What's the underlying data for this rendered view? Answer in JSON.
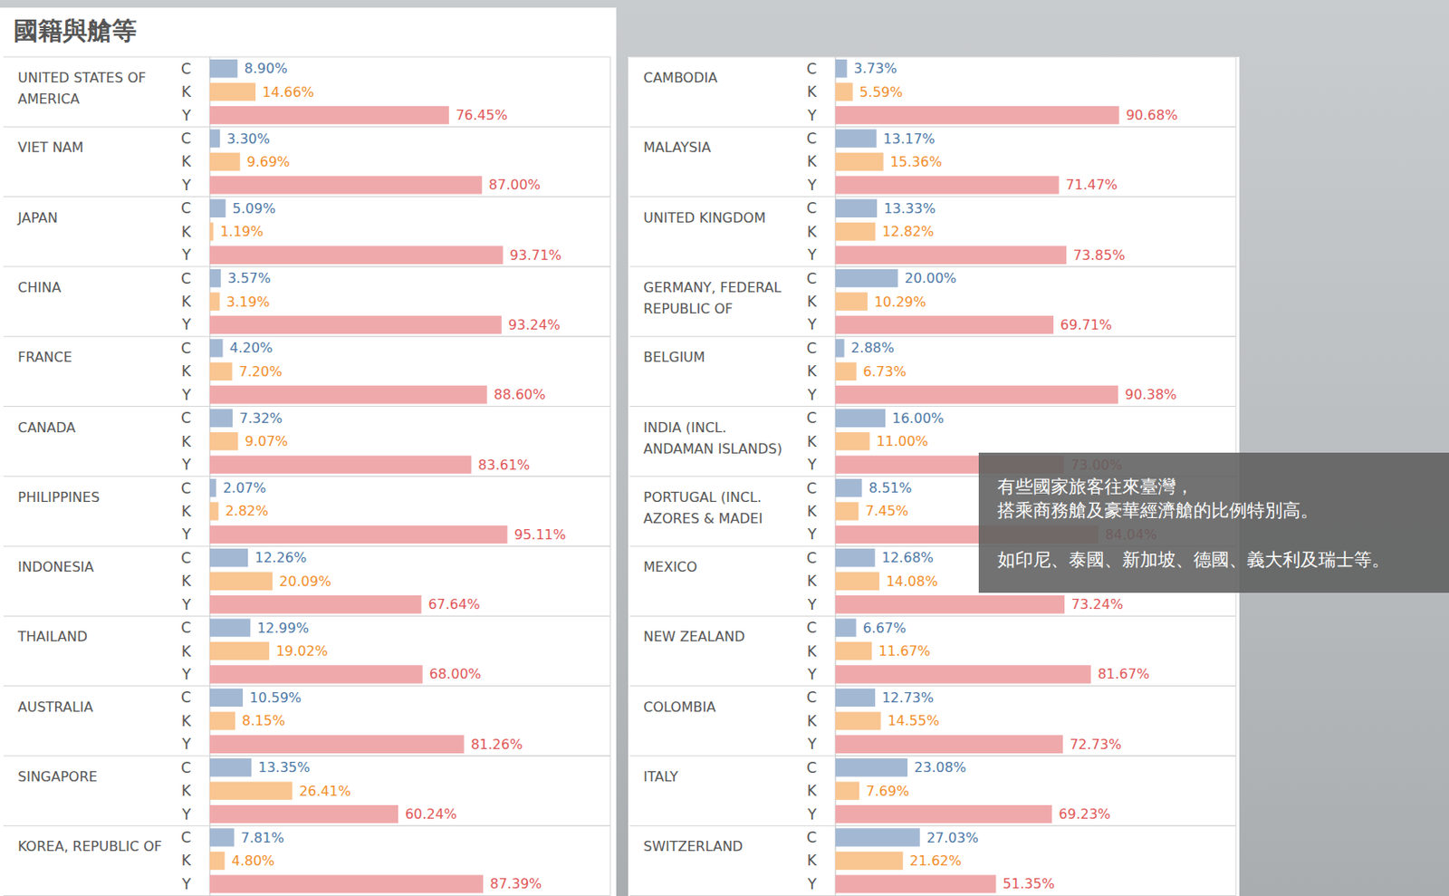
{
  "title": "國籍與艙等",
  "annotation": [
    "有些國家旅客往來臺灣，",
    "搭乘商務艙及豪華經濟艙的比例特別高。",
    "如印尼、泰國、新加坡、德國、義大利及瑞士等。"
  ],
  "chart_data": [
    {
      "type": "bar",
      "title": "UNITED STATES OF AMERICA",
      "categories": [
        "C",
        "K",
        "Y"
      ],
      "values": [
        8.9,
        14.66,
        76.45
      ],
      "value_labels": [
        "8.90%",
        "14.66%",
        "76.45%"
      ],
      "colors": [
        "#a3b8d3",
        "#f9c591",
        "#f0a9ab"
      ],
      "orientation": "horizontal",
      "data_labels": true,
      "tick_labels": "y",
      "xlim": [
        0,
        128
      ]
    },
    {
      "type": "bar",
      "title": "VIET NAM",
      "categories": [
        "C",
        "K",
        "Y"
      ],
      "values": [
        3.3,
        9.69,
        87.0
      ],
      "value_labels": [
        "3.30%",
        "9.69%",
        "87.00%"
      ],
      "colors": [
        "#a3b8d3",
        "#f9c591",
        "#f0a9ab"
      ],
      "orientation": "horizontal",
      "data_labels": true,
      "tick_labels": "y",
      "xlim": [
        0,
        128
      ]
    },
    {
      "type": "bar",
      "title": "JAPAN",
      "categories": [
        "C",
        "K",
        "Y"
      ],
      "values": [
        5.09,
        1.19,
        93.71
      ],
      "value_labels": [
        "5.09%",
        "1.19%",
        "93.71%"
      ],
      "colors": [
        "#a3b8d3",
        "#f9c591",
        "#f0a9ab"
      ],
      "orientation": "horizontal",
      "data_labels": true,
      "tick_labels": "y",
      "xlim": [
        0,
        128
      ]
    },
    {
      "type": "bar",
      "title": "CHINA",
      "categories": [
        "C",
        "K",
        "Y"
      ],
      "values": [
        3.57,
        3.19,
        93.24
      ],
      "value_labels": [
        "3.57%",
        "3.19%",
        "93.24%"
      ],
      "colors": [
        "#a3b8d3",
        "#f9c591",
        "#f0a9ab"
      ],
      "orientation": "horizontal",
      "data_labels": true,
      "tick_labels": "y",
      "xlim": [
        0,
        128
      ]
    },
    {
      "type": "bar",
      "title": "FRANCE",
      "categories": [
        "C",
        "K",
        "Y"
      ],
      "values": [
        4.2,
        7.2,
        88.6
      ],
      "value_labels": [
        "4.20%",
        "7.20%",
        "88.60%"
      ],
      "colors": [
        "#a3b8d3",
        "#f9c591",
        "#f0a9ab"
      ],
      "orientation": "horizontal",
      "data_labels": true,
      "tick_labels": "y",
      "xlim": [
        0,
        128
      ]
    },
    {
      "type": "bar",
      "title": "CANADA",
      "categories": [
        "C",
        "K",
        "Y"
      ],
      "values": [
        7.32,
        9.07,
        83.61
      ],
      "value_labels": [
        "7.32%",
        "9.07%",
        "83.61%"
      ],
      "colors": [
        "#a3b8d3",
        "#f9c591",
        "#f0a9ab"
      ],
      "orientation": "horizontal",
      "data_labels": true,
      "tick_labels": "y",
      "xlim": [
        0,
        128
      ]
    },
    {
      "type": "bar",
      "title": "PHILIPPINES",
      "categories": [
        "C",
        "K",
        "Y"
      ],
      "values": [
        2.07,
        2.82,
        95.11
      ],
      "value_labels": [
        "2.07%",
        "2.82%",
        "95.11%"
      ],
      "colors": [
        "#a3b8d3",
        "#f9c591",
        "#f0a9ab"
      ],
      "orientation": "horizontal",
      "data_labels": true,
      "tick_labels": "y",
      "xlim": [
        0,
        128
      ]
    },
    {
      "type": "bar",
      "title": "INDONESIA",
      "categories": [
        "C",
        "K",
        "Y"
      ],
      "values": [
        12.26,
        20.09,
        67.64
      ],
      "value_labels": [
        "12.26%",
        "20.09%",
        "67.64%"
      ],
      "colors": [
        "#a3b8d3",
        "#f9c591",
        "#f0a9ab"
      ],
      "orientation": "horizontal",
      "data_labels": true,
      "tick_labels": "y",
      "xlim": [
        0,
        128
      ]
    },
    {
      "type": "bar",
      "title": "THAILAND",
      "categories": [
        "C",
        "K",
        "Y"
      ],
      "values": [
        12.99,
        19.02,
        68.0
      ],
      "value_labels": [
        "12.99%",
        "19.02%",
        "68.00%"
      ],
      "colors": [
        "#a3b8d3",
        "#f9c591",
        "#f0a9ab"
      ],
      "orientation": "horizontal",
      "data_labels": true,
      "tick_labels": "y",
      "xlim": [
        0,
        128
      ]
    },
    {
      "type": "bar",
      "title": "AUSTRALIA",
      "categories": [
        "C",
        "K",
        "Y"
      ],
      "values": [
        10.59,
        8.15,
        81.26
      ],
      "value_labels": [
        "10.59%",
        "8.15%",
        "81.26%"
      ],
      "colors": [
        "#a3b8d3",
        "#f9c591",
        "#f0a9ab"
      ],
      "orientation": "horizontal",
      "data_labels": true,
      "tick_labels": "y",
      "xlim": [
        0,
        128
      ]
    },
    {
      "type": "bar",
      "title": "SINGAPORE",
      "categories": [
        "C",
        "K",
        "Y"
      ],
      "values": [
        13.35,
        26.41,
        60.24
      ],
      "value_labels": [
        "13.35%",
        "26.41%",
        "60.24%"
      ],
      "colors": [
        "#a3b8d3",
        "#f9c591",
        "#f0a9ab"
      ],
      "orientation": "horizontal",
      "data_labels": true,
      "tick_labels": "y",
      "xlim": [
        0,
        128
      ]
    },
    {
      "type": "bar",
      "title": "KOREA, REPUBLIC OF",
      "categories": [
        "C",
        "K",
        "Y"
      ],
      "values": [
        7.81,
        4.8,
        87.39
      ],
      "value_labels": [
        "7.81%",
        "4.80%",
        "87.39%"
      ],
      "colors": [
        "#a3b8d3",
        "#f9c591",
        "#f0a9ab"
      ],
      "orientation": "horizontal",
      "data_labels": true,
      "tick_labels": "y",
      "xlim": [
        0,
        128
      ]
    },
    {
      "type": "bar",
      "title": "CAMBODIA",
      "categories": [
        "C",
        "K",
        "Y"
      ],
      "values": [
        3.73,
        5.59,
        90.68
      ],
      "value_labels": [
        "3.73%",
        "5.59%",
        "90.68%"
      ],
      "colors": [
        "#a3b8d3",
        "#f9c591",
        "#f0a9ab"
      ],
      "orientation": "horizontal",
      "data_labels": true,
      "tick_labels": "y",
      "xlim": [
        0,
        128
      ]
    },
    {
      "type": "bar",
      "title": "MALAYSIA",
      "categories": [
        "C",
        "K",
        "Y"
      ],
      "values": [
        13.17,
        15.36,
        71.47
      ],
      "value_labels": [
        "13.17%",
        "15.36%",
        "71.47%"
      ],
      "colors": [
        "#a3b8d3",
        "#f9c591",
        "#f0a9ab"
      ],
      "orientation": "horizontal",
      "data_labels": true,
      "tick_labels": "y",
      "xlim": [
        0,
        128
      ]
    },
    {
      "type": "bar",
      "title": "UNITED KINGDOM",
      "categories": [
        "C",
        "K",
        "Y"
      ],
      "values": [
        13.33,
        12.82,
        73.85
      ],
      "value_labels": [
        "13.33%",
        "12.82%",
        "73.85%"
      ],
      "colors": [
        "#a3b8d3",
        "#f9c591",
        "#f0a9ab"
      ],
      "orientation": "horizontal",
      "data_labels": true,
      "tick_labels": "y",
      "xlim": [
        0,
        128
      ]
    },
    {
      "type": "bar",
      "title": "GERMANY, FEDERAL REPUBLIC OF",
      "categories": [
        "C",
        "K",
        "Y"
      ],
      "values": [
        20.0,
        10.29,
        69.71
      ],
      "value_labels": [
        "20.00%",
        "10.29%",
        "69.71%"
      ],
      "colors": [
        "#a3b8d3",
        "#f9c591",
        "#f0a9ab"
      ],
      "orientation": "horizontal",
      "data_labels": true,
      "tick_labels": "y",
      "xlim": [
        0,
        128
      ]
    },
    {
      "type": "bar",
      "title": "BELGIUM",
      "categories": [
        "C",
        "K",
        "Y"
      ],
      "values": [
        2.88,
        6.73,
        90.38
      ],
      "value_labels": [
        "2.88%",
        "6.73%",
        "90.38%"
      ],
      "colors": [
        "#a3b8d3",
        "#f9c591",
        "#f0a9ab"
      ],
      "orientation": "horizontal",
      "data_labels": true,
      "tick_labels": "y",
      "xlim": [
        0,
        128
      ]
    },
    {
      "type": "bar",
      "title": "INDIA (INCL. ANDAMAN ISLANDS)",
      "categories": [
        "C",
        "K",
        "Y"
      ],
      "values": [
        16.0,
        11.0,
        73.0
      ],
      "value_labels": [
        "16.00%",
        "11.00%",
        "73.00%"
      ],
      "colors": [
        "#a3b8d3",
        "#f9c591",
        "#f0a9ab"
      ],
      "orientation": "horizontal",
      "data_labels": true,
      "tick_labels": "y",
      "xlim": [
        0,
        128
      ]
    },
    {
      "type": "bar",
      "title": "PORTUGAL (INCL. AZORES & MADEI",
      "categories": [
        "C",
        "K",
        "Y"
      ],
      "values": [
        8.51,
        7.45,
        84.04
      ],
      "value_labels": [
        "8.51%",
        "7.45%",
        "84.04%"
      ],
      "colors": [
        "#a3b8d3",
        "#f9c591",
        "#f0a9ab"
      ],
      "orientation": "horizontal",
      "data_labels": true,
      "tick_labels": "y",
      "xlim": [
        0,
        128
      ]
    },
    {
      "type": "bar",
      "title": "MEXICO",
      "categories": [
        "C",
        "K",
        "Y"
      ],
      "values": [
        12.68,
        14.08,
        73.24
      ],
      "value_labels": [
        "12.68%",
        "14.08%",
        "73.24%"
      ],
      "colors": [
        "#a3b8d3",
        "#f9c591",
        "#f0a9ab"
      ],
      "orientation": "horizontal",
      "data_labels": true,
      "tick_labels": "y",
      "xlim": [
        0,
        128
      ]
    },
    {
      "type": "bar",
      "title": "NEW ZEALAND",
      "categories": [
        "C",
        "K",
        "Y"
      ],
      "values": [
        6.67,
        11.67,
        81.67
      ],
      "value_labels": [
        "6.67%",
        "11.67%",
        "81.67%"
      ],
      "colors": [
        "#a3b8d3",
        "#f9c591",
        "#f0a9ab"
      ],
      "orientation": "horizontal",
      "data_labels": true,
      "tick_labels": "y",
      "xlim": [
        0,
        128
      ]
    },
    {
      "type": "bar",
      "title": "COLOMBIA",
      "categories": [
        "C",
        "K",
        "Y"
      ],
      "values": [
        12.73,
        14.55,
        72.73
      ],
      "value_labels": [
        "12.73%",
        "14.55%",
        "72.73%"
      ],
      "colors": [
        "#a3b8d3",
        "#f9c591",
        "#f0a9ab"
      ],
      "orientation": "horizontal",
      "data_labels": true,
      "tick_labels": "y",
      "xlim": [
        0,
        128
      ]
    },
    {
      "type": "bar",
      "title": "ITALY",
      "categories": [
        "C",
        "K",
        "Y"
      ],
      "values": [
        23.08,
        7.69,
        69.23
      ],
      "value_labels": [
        "23.08%",
        "7.69%",
        "69.23%"
      ],
      "colors": [
        "#a3b8d3",
        "#f9c591",
        "#f0a9ab"
      ],
      "orientation": "horizontal",
      "data_labels": true,
      "tick_labels": "y",
      "xlim": [
        0,
        128
      ]
    },
    {
      "type": "bar",
      "title": "SWITZERLAND",
      "categories": [
        "C",
        "K",
        "Y"
      ],
      "values": [
        27.03,
        21.62,
        51.35
      ],
      "value_labels": [
        "27.03%",
        "21.62%",
        "51.35%"
      ],
      "colors": [
        "#a3b8d3",
        "#f9c591",
        "#f0a9ab"
      ],
      "orientation": "horizontal",
      "data_labels": true,
      "tick_labels": "y",
      "xlim": [
        0,
        128
      ]
    }
  ]
}
